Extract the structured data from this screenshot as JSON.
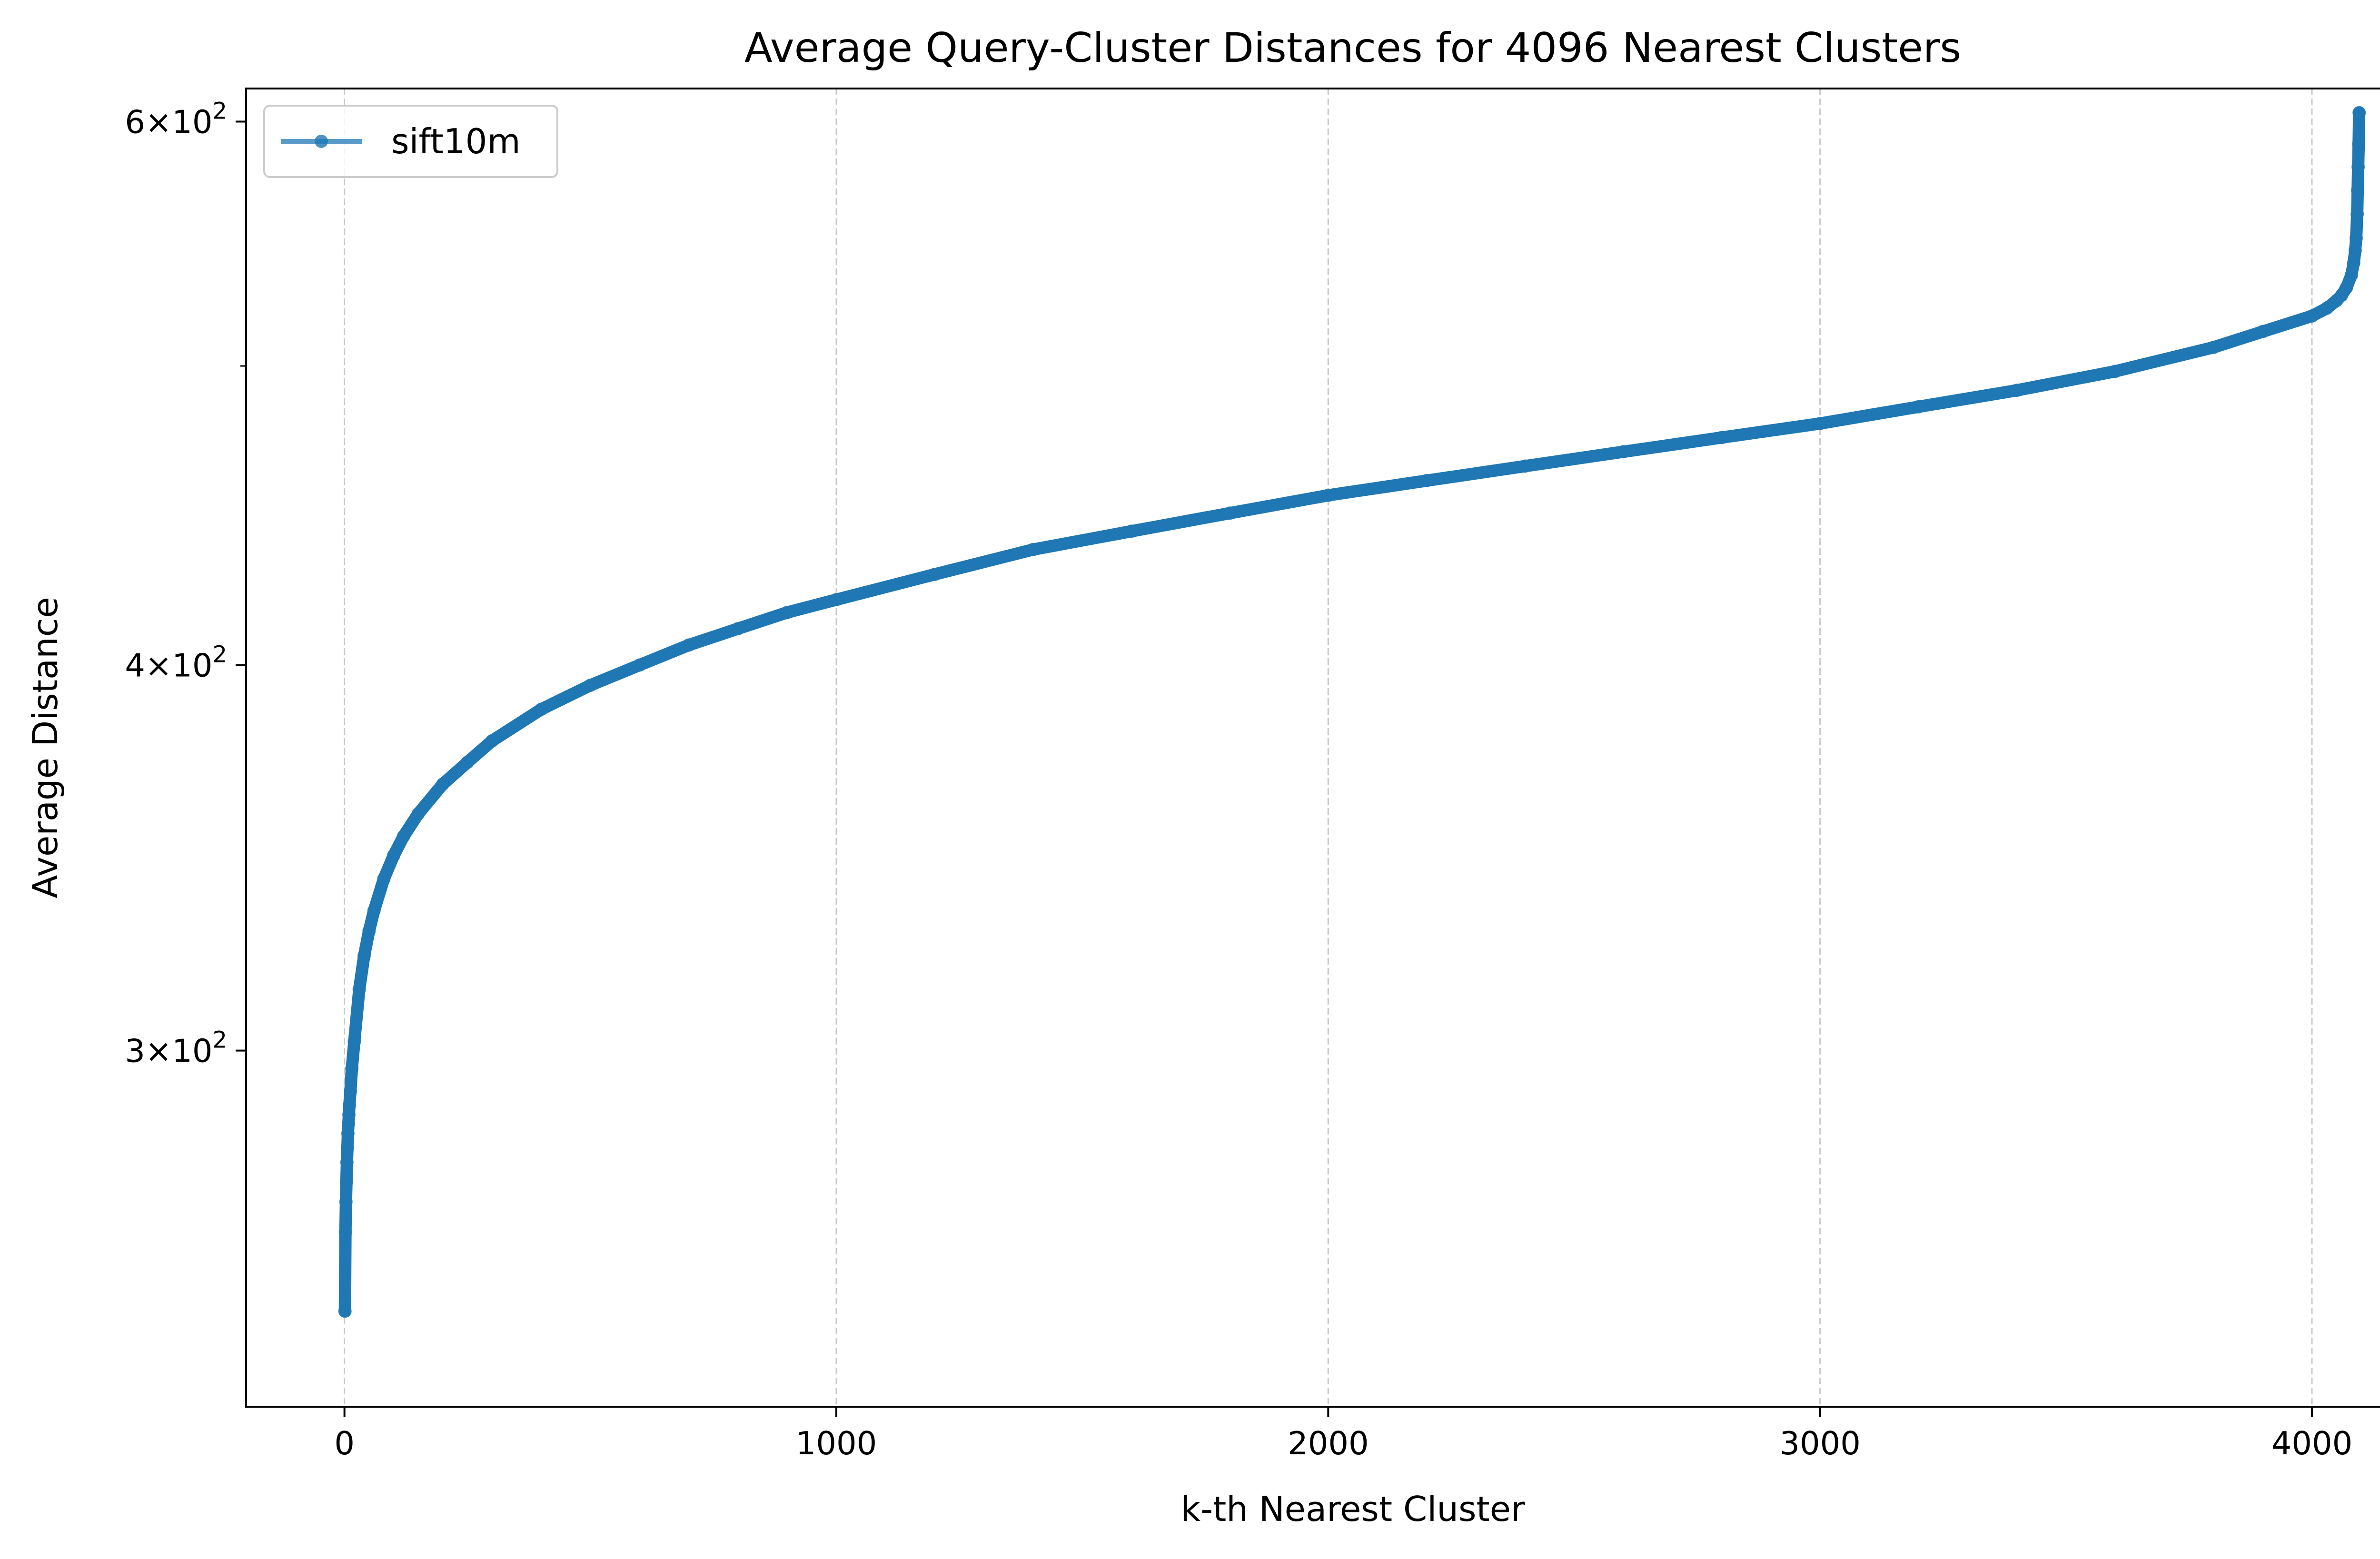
{
  "chart_data": {
    "type": "line",
    "title": "Average Query-Cluster Distances for 4096 Nearest Clusters",
    "xlabel": "k-th Nearest Cluster",
    "ylabel": "Average Distance",
    "xlim": [
      -200,
      4300
    ],
    "ylim": [
      230,
      615
    ],
    "yscale": "log",
    "grid": "x-dashed",
    "legend": "upper left",
    "x_ticks": [
      {
        "value": 0,
        "label": "0"
      },
      {
        "value": 1000,
        "label": "1000"
      },
      {
        "value": 2000,
        "label": "2000"
      },
      {
        "value": 3000,
        "label": "3000"
      },
      {
        "value": 4000,
        "label": "4000"
      }
    ],
    "y_ticks": [
      {
        "value": 300,
        "base": "3",
        "exp": "2"
      },
      {
        "value": 400,
        "base": "4",
        "exp": "2"
      },
      {
        "value": 600,
        "base": "6",
        "exp": "2"
      }
    ],
    "y_minor_ticks": [
      500
    ],
    "series": [
      {
        "name": "sift10m",
        "color": "#1f77b4",
        "marker": "circle",
        "points": [
          [
            1,
            247
          ],
          [
            2,
            262
          ],
          [
            3,
            268
          ],
          [
            4,
            272
          ],
          [
            5,
            276
          ],
          [
            6,
            279
          ],
          [
            7,
            282
          ],
          [
            8,
            284
          ],
          [
            9,
            286
          ],
          [
            10,
            288
          ],
          [
            12,
            291
          ],
          [
            15,
            296
          ],
          [
            20,
            302
          ],
          [
            30,
            314
          ],
          [
            40,
            322
          ],
          [
            50,
            328
          ],
          [
            60,
            333
          ],
          [
            80,
            341
          ],
          [
            100,
            347
          ],
          [
            120,
            352
          ],
          [
            150,
            358
          ],
          [
            200,
            366
          ],
          [
            250,
            372
          ],
          [
            300,
            378
          ],
          [
            400,
            387
          ],
          [
            500,
            394
          ],
          [
            600,
            400
          ],
          [
            700,
            406
          ],
          [
            800,
            411
          ],
          [
            900,
            416
          ],
          [
            1000,
            420
          ],
          [
            1200,
            428
          ],
          [
            1400,
            436
          ],
          [
            1600,
            442
          ],
          [
            1800,
            448
          ],
          [
            2000,
            454
          ],
          [
            2200,
            459
          ],
          [
            2400,
            464
          ],
          [
            2600,
            469
          ],
          [
            2800,
            474
          ],
          [
            3000,
            479
          ],
          [
            3200,
            485
          ],
          [
            3400,
            491
          ],
          [
            3600,
            498
          ],
          [
            3800,
            507
          ],
          [
            3900,
            513
          ],
          [
            4000,
            519
          ],
          [
            4030,
            522
          ],
          [
            4050,
            525
          ],
          [
            4060,
            527
          ],
          [
            4070,
            530
          ],
          [
            4080,
            535
          ],
          [
            4085,
            540
          ],
          [
            4088,
            545
          ],
          [
            4090,
            550
          ],
          [
            4092,
            560
          ],
          [
            4093,
            570
          ],
          [
            4094,
            580
          ],
          [
            4095,
            590
          ],
          [
            4096,
            604
          ]
        ]
      }
    ]
  }
}
